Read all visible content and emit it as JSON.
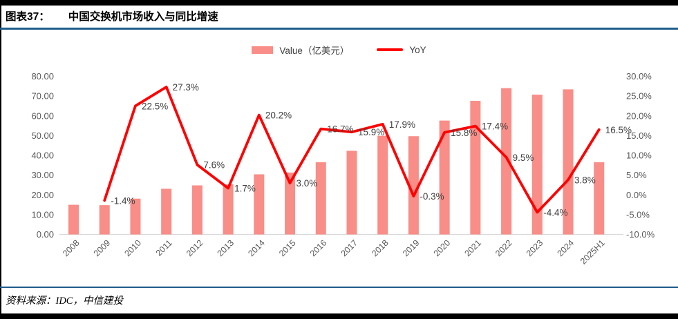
{
  "header": {
    "label": "图表37：",
    "title": "中国交换机市场收入与同比增速"
  },
  "legend": [
    {
      "label": "Value（亿美元）",
      "type": "bar"
    },
    {
      "label": "YoY",
      "type": "line"
    }
  ],
  "footer": {
    "source": "资料来源：IDC，中信建投"
  },
  "colors": {
    "bar": "#F98D87",
    "line": "#FE0000",
    "rule_blue": "#1E5C8B",
    "frame_black": "#000000",
    "axis_text": "#595959",
    "data_label_text": "#404040",
    "axis_line": "#D9D9D9"
  },
  "chart_data": {
    "type": "bar+line combo",
    "title": "中国交换机市场收入与同比增速",
    "categories": [
      "2008",
      "2009",
      "2010",
      "2011",
      "2012",
      "2013",
      "2014",
      "2015",
      "2016",
      "2017",
      "2018",
      "2019",
      "2020",
      "2021",
      "2022",
      "2023",
      "2024",
      "2025H1"
    ],
    "series": [
      {
        "name": "Value（亿美元）",
        "type": "bar",
        "axis": "left",
        "values": [
          15.0,
          14.8,
          18.1,
          23.1,
          24.8,
          25.3,
          30.4,
          31.3,
          36.5,
          42.3,
          49.9,
          49.7,
          57.6,
          67.6,
          74.0,
          70.7,
          73.4,
          36.5
        ]
      },
      {
        "name": "YoY",
        "type": "line",
        "axis": "right",
        "values": [
          null,
          -1.4,
          22.5,
          27.3,
          7.6,
          1.7,
          20.2,
          3.0,
          16.7,
          15.9,
          17.9,
          -0.3,
          15.8,
          17.4,
          9.5,
          -4.4,
          3.8,
          16.5
        ],
        "labels": [
          "",
          "-1.4%",
          "22.5%",
          "27.3%",
          "7.6%",
          "1.7%",
          "20.2%",
          "3.0%",
          "16.7%",
          "15.9%",
          "17.9%",
          "-0.3%",
          "15.8%",
          "17.4%",
          "9.5%",
          "-4.4%",
          "3.8%",
          "16.5%"
        ]
      }
    ],
    "left_axis": {
      "ticks": [
        "80.00",
        "70.00",
        "60.00",
        "50.00",
        "40.00",
        "30.00",
        "20.00",
        "10.00",
        "0.00"
      ],
      "min": 0,
      "max": 80
    },
    "right_axis": {
      "ticks": [
        "30.0%",
        "25.0%",
        "20.0%",
        "15.0%",
        "10.0%",
        "5.0%",
        "0.0%",
        "-5.0%",
        "-10.0%"
      ],
      "min": -10,
      "max": 30
    },
    "grid": "off",
    "legend_position": "top-center"
  }
}
